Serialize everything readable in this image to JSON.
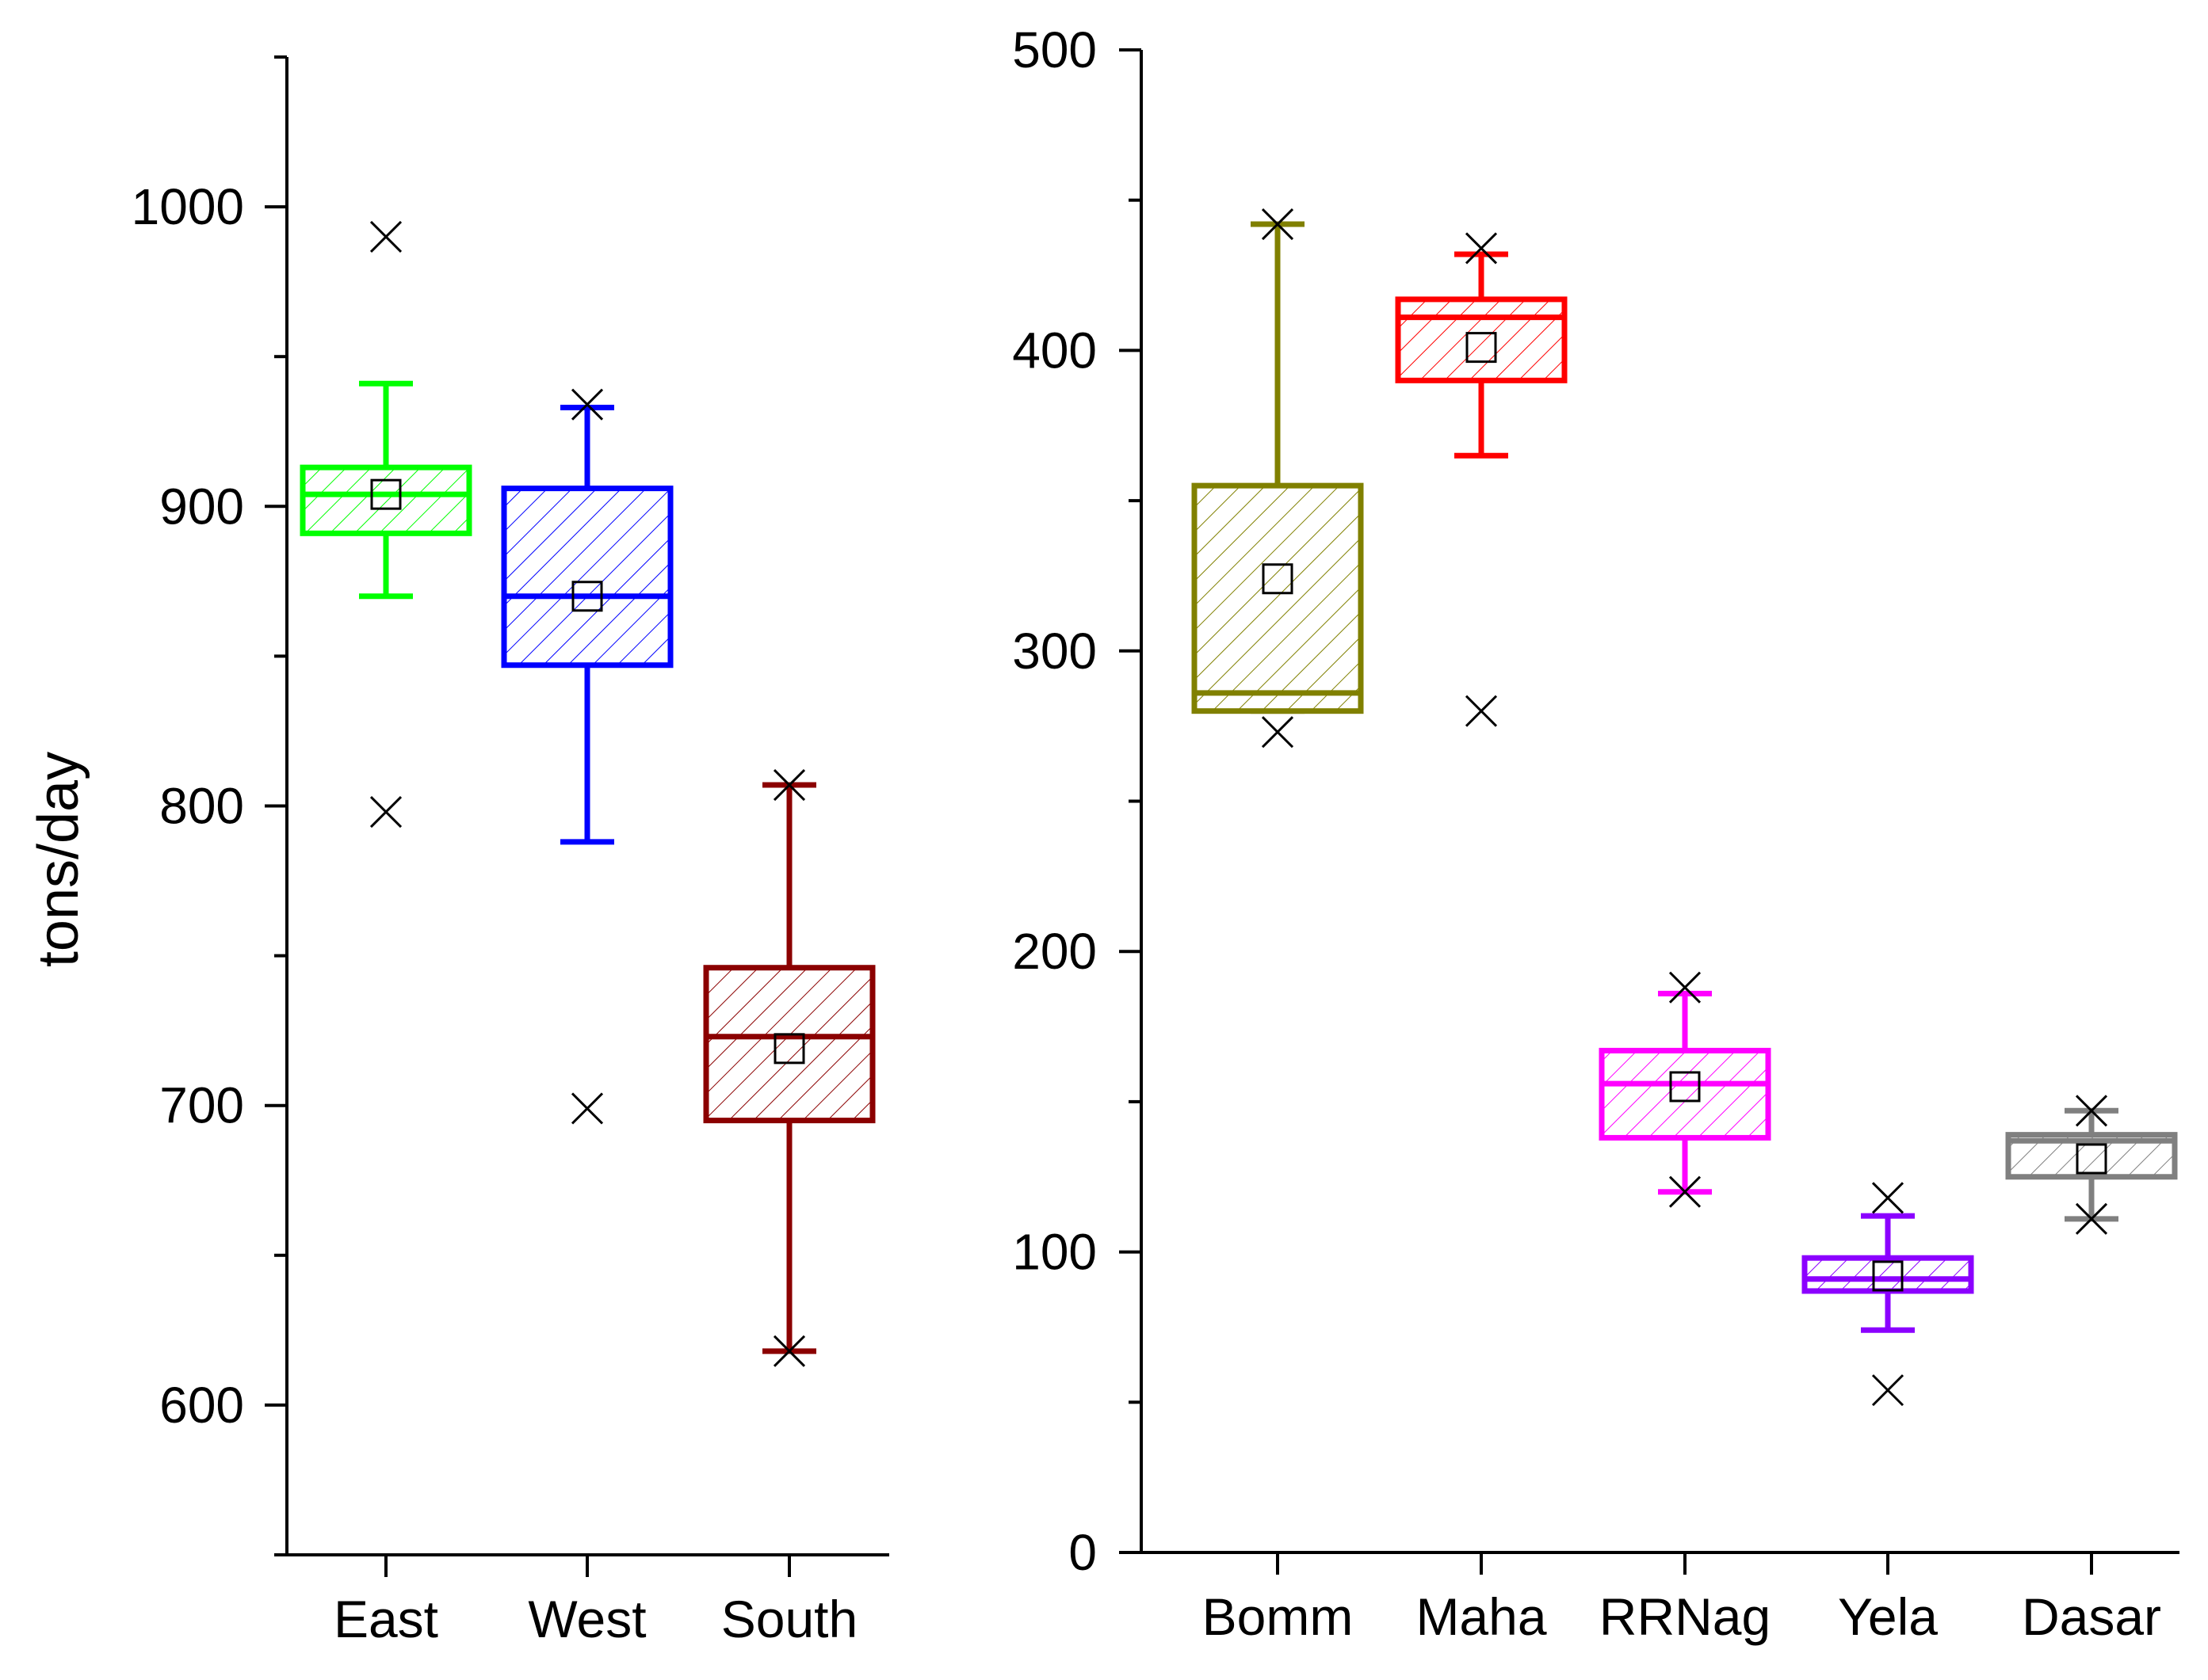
{
  "chart_data": [
    {
      "type": "box",
      "title": "",
      "xlabel": "",
      "ylabel": "tons/day",
      "ylim": [
        550,
        1050
      ],
      "yticks": [
        600,
        700,
        800,
        900,
        1000
      ],
      "ytick_labels": [
        "600",
        "700",
        "800",
        "900",
        "1000"
      ],
      "categories": [
        "East",
        "West",
        "South"
      ],
      "boxes": [
        {
          "name": "East",
          "color": "#00ff00",
          "q1": 891,
          "median": 904,
          "q3": 913,
          "mean": 904,
          "whisker_low": 870,
          "whisker_high": 941,
          "min": 798,
          "max": 990
        },
        {
          "name": "West",
          "color": "#0000ff",
          "q1": 847,
          "median": 870,
          "q3": 906,
          "mean": 870,
          "whisker_low": 788,
          "whisker_high": 933,
          "min": 699,
          "max": 934
        },
        {
          "name": "South",
          "color": "#8b0000",
          "q1": 695,
          "median": 723,
          "q3": 746,
          "mean": 719,
          "whisker_low": 618,
          "whisker_high": 807,
          "min": 618,
          "max": 807
        }
      ]
    },
    {
      "type": "box",
      "title": "",
      "xlabel": "",
      "ylabel": "",
      "ylim": [
        0,
        500
      ],
      "yticks": [
        0,
        100,
        200,
        300,
        400,
        500
      ],
      "ytick_labels": [
        "0",
        "100",
        "200",
        "300",
        "400",
        "500"
      ],
      "categories": [
        "Bomm",
        "Maha",
        "RRNag",
        "Yela",
        "Dasar"
      ],
      "boxes": [
        {
          "name": "Bomm",
          "color": "#808000",
          "q1": 280,
          "median": 286,
          "q3": 355,
          "mean": 324,
          "whisker_low": 280,
          "whisker_high": 442,
          "min": 273,
          "max": 442
        },
        {
          "name": "Maha",
          "color": "#ff0000",
          "q1": 390,
          "median": 411,
          "q3": 417,
          "mean": 401,
          "whisker_low": 365,
          "whisker_high": 432,
          "min": 280,
          "max": 434
        },
        {
          "name": "RRNag",
          "color": "#ff00ff",
          "q1": 138,
          "median": 156,
          "q3": 167,
          "mean": 155,
          "whisker_low": 120,
          "whisker_high": 186,
          "min": 120,
          "max": 188
        },
        {
          "name": "Yela",
          "color": "#8b00ff",
          "q1": 87,
          "median": 91,
          "q3": 98,
          "mean": 92,
          "whisker_low": 74,
          "whisker_high": 112,
          "min": 54,
          "max": 118
        },
        {
          "name": "Dasar",
          "color": "#808080",
          "q1": 125,
          "median": 137,
          "q3": 139,
          "mean": 131,
          "whisker_low": 111,
          "whisker_high": 147,
          "min": 111,
          "max": 147
        }
      ]
    }
  ]
}
